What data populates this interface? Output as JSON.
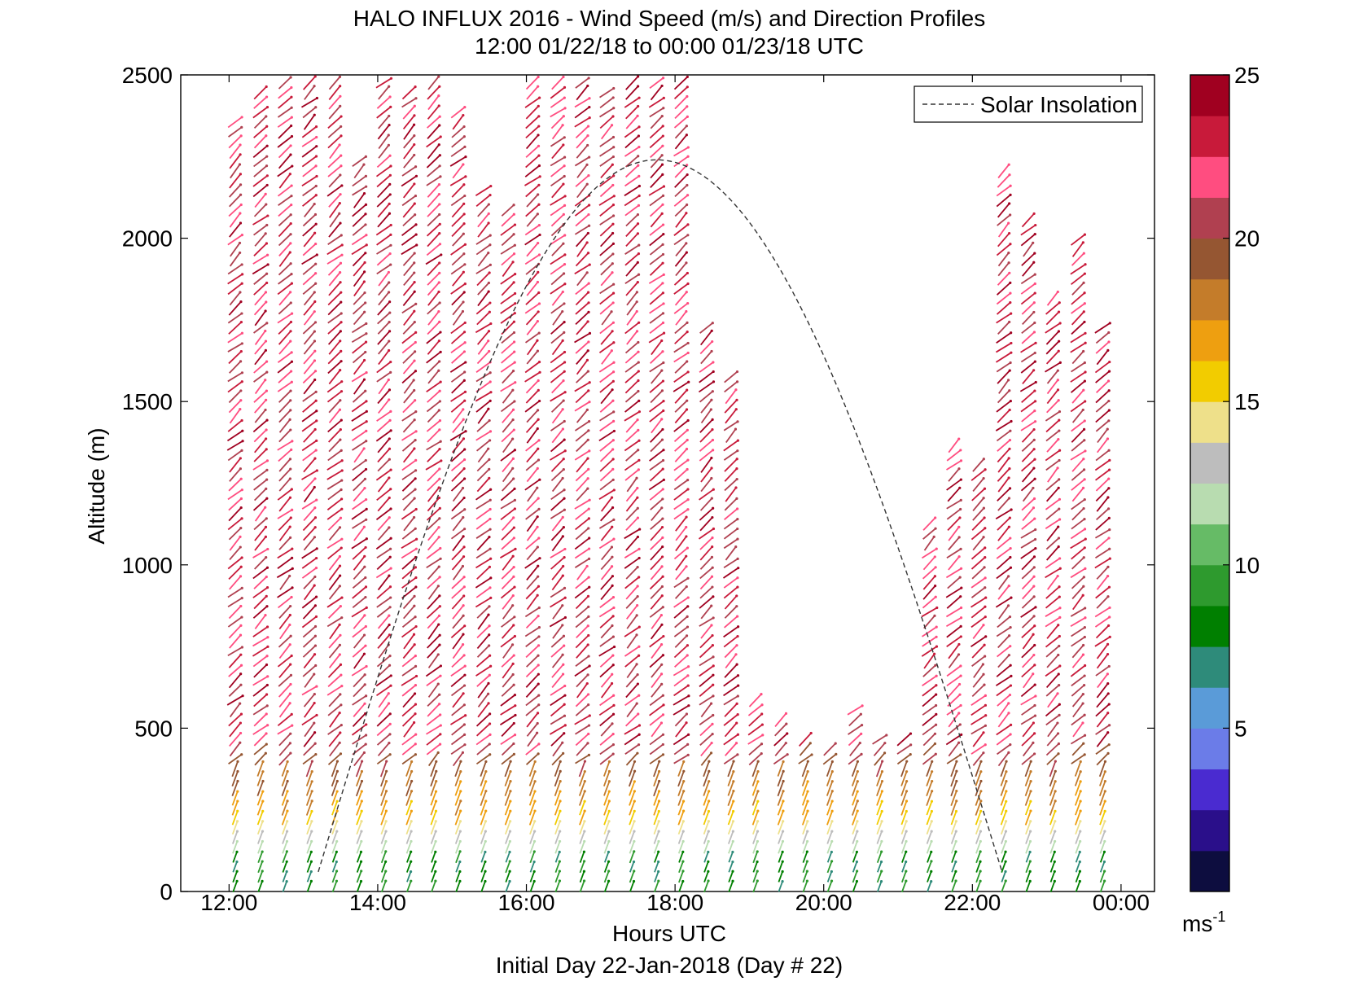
{
  "chart_data": {
    "type": "wind-barb-profile",
    "title": "HALO INFLUX 2016 - Wind Speed (m/s) and Direction Profiles",
    "subtitle": "12:00 01/22/18 to 00:00 01/23/18  UTC",
    "xlabel": "Hours UTC",
    "xlabel2": "Initial Day 22-Jan-2018 (Day # 22)",
    "ylabel": "Altitude (m)",
    "xlim_hours": [
      11.35,
      24.45
    ],
    "ylim": [
      0,
      2500
    ],
    "xticks": [
      {
        "hour": 12,
        "label": "12:00"
      },
      {
        "hour": 14,
        "label": "14:00"
      },
      {
        "hour": 16,
        "label": "16:00"
      },
      {
        "hour": 18,
        "label": "18:00"
      },
      {
        "hour": 20,
        "label": "20:00"
      },
      {
        "hour": 22,
        "label": "22:00"
      },
      {
        "hour": 24,
        "label": "00:00"
      }
    ],
    "yticks": [
      0,
      500,
      1000,
      1500,
      2000,
      2500
    ],
    "legend": {
      "label": "Solar Insolation",
      "position": "top-right",
      "style": "dashed"
    },
    "solar_insolation": {
      "start_hour": 13.2,
      "peak_hour": 17.75,
      "end_hour": 22.4,
      "peak_altitude": 2240
    },
    "colorbar": {
      "range": [
        0,
        25
      ],
      "ticks": [
        5,
        10,
        15,
        20,
        25
      ],
      "unit_label": "ms",
      "unit_exponent": "-1",
      "colors": [
        "#0d0d3f",
        "#2a0f8a",
        "#4a2bd0",
        "#6b7ce8",
        "#5a9bd8",
        "#2e8b7a",
        "#007f00",
        "#2e9a2e",
        "#66bb66",
        "#b8dcb0",
        "#bdbdbd",
        "#eee08a",
        "#f2cc00",
        "#ee9f10",
        "#c47c2a",
        "#955632",
        "#b04050",
        "#ff4d80",
        "#c81a3a",
        "#a00020"
      ]
    },
    "profiles": {
      "times_hours": [
        12.08,
        12.42,
        12.75,
        13.08,
        13.42,
        13.75,
        14.08,
        14.42,
        14.75,
        15.08,
        15.42,
        15.75,
        16.08,
        16.42,
        16.75,
        17.08,
        17.42,
        17.75,
        18.08,
        18.42,
        18.75,
        19.08,
        19.42,
        19.75,
        20.08,
        20.42,
        20.75,
        21.08,
        21.42,
        21.75,
        22.08,
        22.42,
        22.75,
        23.08,
        23.42,
        23.75
      ],
      "top_altitudes_m": [
        2370,
        2450,
        2500,
        2500,
        2500,
        2240,
        2500,
        2450,
        2500,
        2410,
        2150,
        2100,
        2500,
        2500,
        2500,
        2450,
        2500,
        2500,
        2500,
        1750,
        1580,
        590,
        550,
        490,
        460,
        560,
        490,
        490,
        1130,
        1380,
        1330,
        2210,
        2080,
        1840,
        2000,
        1750
      ],
      "profile_notes": "Each column of arrows shows wind direction and speed with altitude; low levels ~7-12 m/s (green), increasing to ~20-25 m/s (red) aloft."
    }
  }
}
